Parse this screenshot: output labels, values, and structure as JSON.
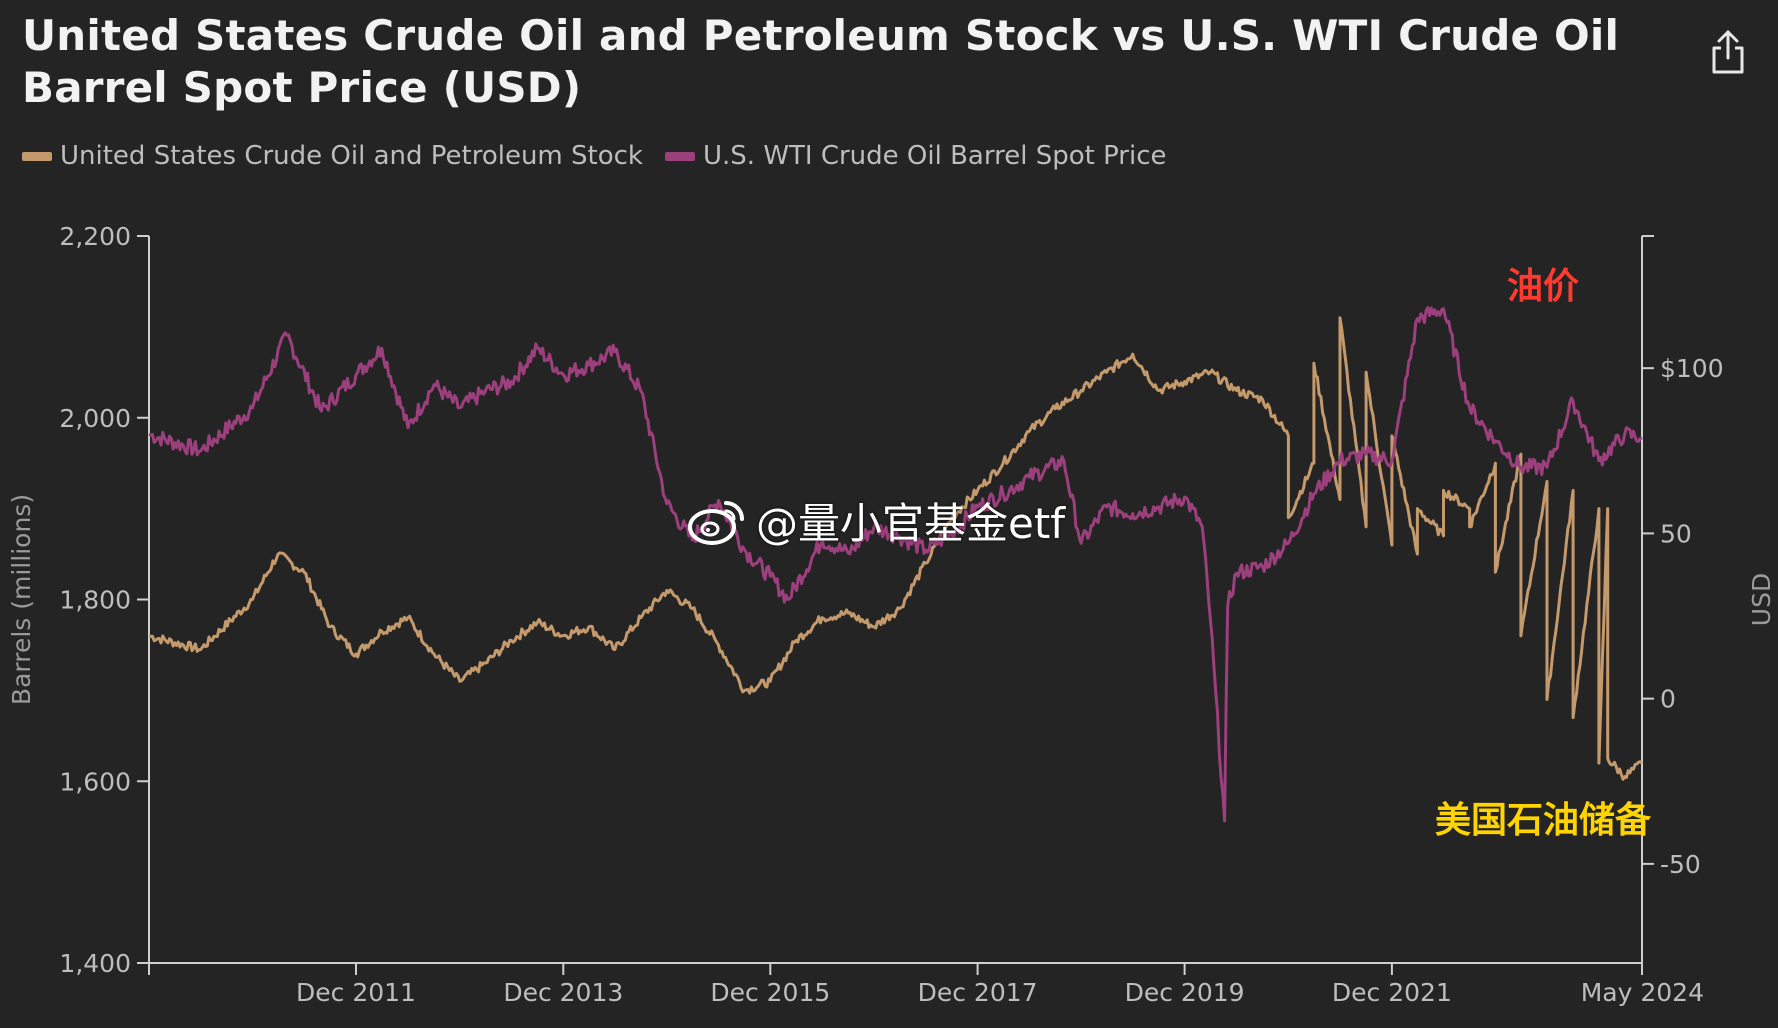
{
  "header": {
    "title": "United States Crude Oil and Petroleum Stock vs U.S. WTI Crude Oil Barrel Spot Price (USD)",
    "share_icon": "share-icon"
  },
  "watermark": {
    "text": "@量小官基金etf",
    "icon": "weibo-icon"
  },
  "colors": {
    "background": "#242424",
    "stock": "#c49a6c",
    "wti": "#9c3f7d",
    "axis": "#cfcfcf",
    "annotation_price": "#ff3b30",
    "annotation_stock": "#ffd400"
  },
  "chart_data": {
    "type": "line",
    "title": "United States Crude Oil and Petroleum Stock vs U.S. WTI Crude Oil Barrel Spot Price (USD)",
    "legend_position": "top-left",
    "grid": false,
    "x_range": [
      "2009-12-01",
      "2024-05-01"
    ],
    "x_ticks": [
      "Dec 2011",
      "Dec 2013",
      "Dec 2015",
      "Dec 2017",
      "Dec 2019",
      "Dec 2021",
      "May 2024"
    ],
    "y_left": {
      "label": "Barrels (millions)",
      "range": [
        1400,
        2200
      ],
      "ticks": [
        "1,400",
        "1,600",
        "1,800",
        "2,000",
        "2,200"
      ]
    },
    "y_right": {
      "label": "USD",
      "range": [
        -80,
        140
      ],
      "ticks": [
        "-50",
        "0",
        "50",
        "$100"
      ]
    },
    "series": [
      {
        "name": "United States Crude Oil and Petroleum Stock",
        "axis": "left",
        "points": [
          [
            "2009-12",
            1760
          ],
          [
            "2010-06",
            1745
          ],
          [
            "2010-12",
            1800
          ],
          [
            "2011-03",
            1850
          ],
          [
            "2011-06",
            1830
          ],
          [
            "2011-09",
            1770
          ],
          [
            "2011-12",
            1740
          ],
          [
            "2012-03",
            1765
          ],
          [
            "2012-06",
            1780
          ],
          [
            "2012-09",
            1740
          ],
          [
            "2012-12",
            1710
          ],
          [
            "2013-03",
            1730
          ],
          [
            "2013-06",
            1755
          ],
          [
            "2013-09",
            1775
          ],
          [
            "2013-12",
            1760
          ],
          [
            "2014-03",
            1770
          ],
          [
            "2014-06",
            1745
          ],
          [
            "2014-09",
            1780
          ],
          [
            "2014-12",
            1810
          ],
          [
            "2015-03",
            1790
          ],
          [
            "2015-06",
            1750
          ],
          [
            "2015-09",
            1700
          ],
          [
            "2015-12",
            1710
          ],
          [
            "2016-03",
            1755
          ],
          [
            "2016-06",
            1780
          ],
          [
            "2016-09",
            1785
          ],
          [
            "2016-12",
            1770
          ],
          [
            "2017-03",
            1790
          ],
          [
            "2017-06",
            1840
          ],
          [
            "2017-09",
            1890
          ],
          [
            "2017-12",
            1920
          ],
          [
            "2018-03",
            1950
          ],
          [
            "2018-06",
            1985
          ],
          [
            "2018-09",
            2010
          ],
          [
            "2018-12",
            2030
          ],
          [
            "2019-03",
            2050
          ],
          [
            "2019-06",
            2070
          ],
          [
            "2019-09",
            2030
          ],
          [
            "2019-12",
            2040
          ],
          [
            "2020-03",
            2050
          ],
          [
            "2020-06",
            2030
          ],
          [
            "2020-09",
            2020
          ],
          [
            "2020-12",
            1980
          ],
          [
            "2021-03",
            1950
          ],
          [
            "2021-06",
            1910
          ],
          [
            "2021-09",
            1880
          ],
          [
            "2021-12",
            1860
          ],
          [
            "2022-03",
            1850
          ],
          [
            "2022-06",
            1870
          ],
          [
            "2022-09",
            1900
          ],
          [
            "2022-12",
            1950
          ],
          [
            "2023-03",
            1960
          ],
          [
            "2023-06",
            1930
          ],
          [
            "2023-09",
            1920
          ],
          [
            "2023-12",
            1900
          ],
          [
            "2024-01",
            1900
          ],
          [
            "2020-12-01",
            1890
          ],
          [
            "2021-03-01",
            2060
          ],
          [
            "2021-06-01",
            2110
          ],
          [
            "2021-09-01",
            2050
          ],
          [
            "2021-12-01",
            1980
          ],
          [
            "2022-03-01",
            1900
          ],
          [
            "2022-06-01",
            1920
          ],
          [
            "2022-09-01",
            1880
          ],
          [
            "2022-12-01",
            1830
          ],
          [
            "2023-03-01",
            1760
          ],
          [
            "2023-06-01",
            1690
          ],
          [
            "2023-09-01",
            1670
          ],
          [
            "2023-12-01",
            1620
          ],
          [
            "2024-01-01",
            1625
          ],
          [
            "2024-03-01",
            1605
          ],
          [
            "2024-05-01",
            1620
          ]
        ]
      },
      {
        "name": "U.S. WTI Crude Oil Barrel Spot Price",
        "axis": "right",
        "points": [
          [
            "2009-12",
            80
          ],
          [
            "2010-06",
            75
          ],
          [
            "2010-12",
            88
          ],
          [
            "2011-04",
            110
          ],
          [
            "2011-08",
            87
          ],
          [
            "2011-12",
            98
          ],
          [
            "2012-03",
            106
          ],
          [
            "2012-06",
            82
          ],
          [
            "2012-09",
            95
          ],
          [
            "2012-12",
            88
          ],
          [
            "2013-03",
            93
          ],
          [
            "2013-06",
            96
          ],
          [
            "2013-09",
            106
          ],
          [
            "2013-12",
            98
          ],
          [
            "2014-03",
            101
          ],
          [
            "2014-06",
            105
          ],
          [
            "2014-09",
            93
          ],
          [
            "2014-12",
            59
          ],
          [
            "2015-03",
            48
          ],
          [
            "2015-06",
            60
          ],
          [
            "2015-09",
            45
          ],
          [
            "2015-12",
            37
          ],
          [
            "2016-02",
            30
          ],
          [
            "2016-06",
            48
          ],
          [
            "2016-09",
            44
          ],
          [
            "2016-12",
            52
          ],
          [
            "2017-03",
            49
          ],
          [
            "2017-06",
            45
          ],
          [
            "2017-09",
            50
          ],
          [
            "2017-12",
            58
          ],
          [
            "2018-03",
            62
          ],
          [
            "2018-06",
            67
          ],
          [
            "2018-10",
            72
          ],
          [
            "2018-12",
            47
          ],
          [
            "2019-03",
            58
          ],
          [
            "2019-06",
            56
          ],
          [
            "2019-09",
            58
          ],
          [
            "2019-12",
            61
          ],
          [
            "2020-02",
            52
          ],
          [
            "2020-03",
            24
          ],
          [
            "2020-04-20",
            -37
          ],
          [
            "2020-05",
            28
          ],
          [
            "2020-06",
            38
          ],
          [
            "2020-09",
            40
          ],
          [
            "2020-12",
            47
          ],
          [
            "2021-03",
            62
          ],
          [
            "2021-06",
            72
          ],
          [
            "2021-09",
            74
          ],
          [
            "2021-12",
            72
          ],
          [
            "2022-03",
            115
          ],
          [
            "2022-06",
            118
          ],
          [
            "2022-09",
            88
          ],
          [
            "2022-12",
            78
          ],
          [
            "2023-03",
            70
          ],
          [
            "2023-06",
            70
          ],
          [
            "2023-09",
            90
          ],
          [
            "2023-12",
            72
          ],
          [
            "2024-03",
            80
          ],
          [
            "2024-05",
            79
          ]
        ]
      }
    ],
    "annotations": [
      {
        "text": "油价",
        "color_key": "annotation_price"
      },
      {
        "text": "美国石油储备",
        "color_key": "annotation_stock"
      }
    ]
  }
}
